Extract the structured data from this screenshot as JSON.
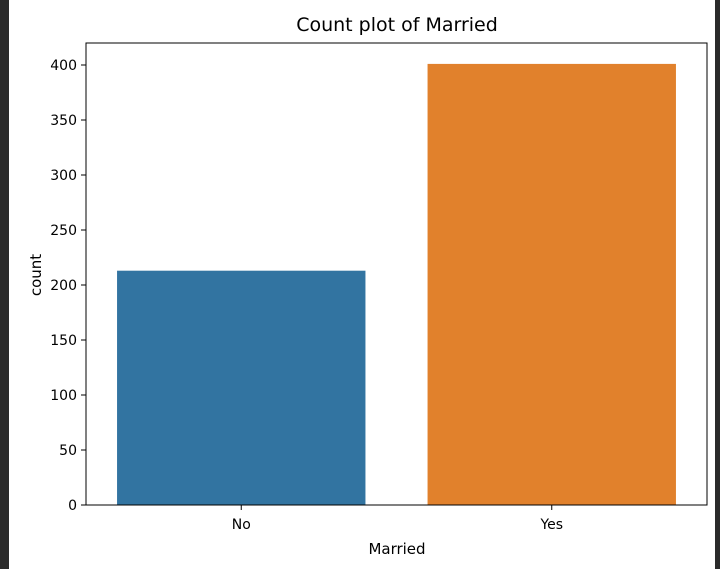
{
  "chart_data": {
    "type": "bar",
    "title": "Count plot of Married",
    "xlabel": "Married",
    "ylabel": "count",
    "categories": [
      "No",
      "Yes"
    ],
    "values": [
      213,
      401
    ],
    "ylim": [
      0,
      420
    ],
    "yticks": [
      0,
      50,
      100,
      150,
      200,
      250,
      300,
      350,
      400
    ],
    "bar_colors": [
      "#3274a1",
      "#e1812c"
    ],
    "grid": false
  },
  "page": {
    "background": "#2b2b2b",
    "figure_background": "#ffffff"
  }
}
